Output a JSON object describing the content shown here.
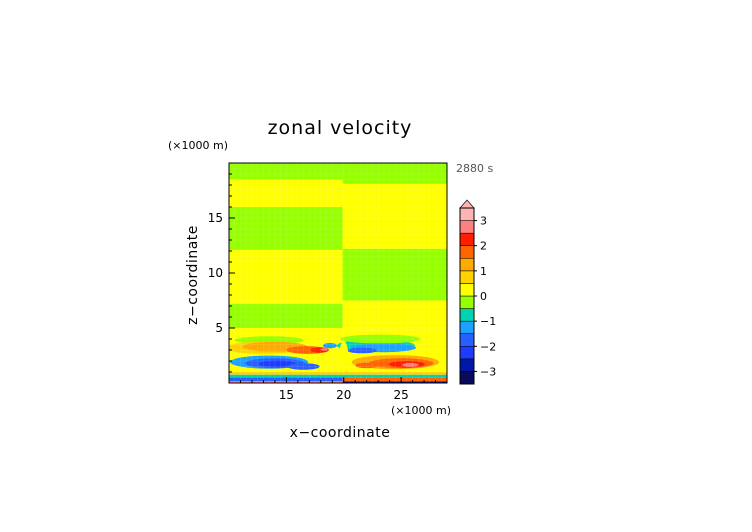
{
  "chart_data": {
    "type": "heatmap",
    "title": "zonal velocity",
    "xlabel": "x−coordinate",
    "ylabel": "z−coordinate",
    "x_unit": "(×1000 m)",
    "y_unit": "(×1000 m)",
    "time_label": "2880 s",
    "xlim": [
      10,
      29
    ],
    "ylim": [
      0,
      20
    ],
    "x_ticks": [
      15,
      20,
      25
    ],
    "y_ticks": [
      5,
      10,
      15
    ],
    "colorbar": {
      "min": -3.5,
      "max": 3.5,
      "extend": "max",
      "ticks": [
        "3",
        "2",
        "1",
        "0",
        "−1",
        "−2",
        "−3"
      ],
      "tick_values": [
        3,
        2,
        1,
        0,
        -1,
        -2,
        -3
      ],
      "levels": [
        {
          "from": -3.5,
          "to": -3.0,
          "color": "#0a0a5a"
        },
        {
          "from": -3.0,
          "to": -2.5,
          "color": "#0018a8"
        },
        {
          "from": -2.5,
          "to": -2.0,
          "color": "#1e3cff"
        },
        {
          "from": -2.0,
          "to": -1.5,
          "color": "#2860ff"
        },
        {
          "from": -1.5,
          "to": -1.0,
          "color": "#1ea0ff"
        },
        {
          "from": -1.0,
          "to": -0.5,
          "color": "#00d2b4"
        },
        {
          "from": -0.5,
          "to": 0.0,
          "color": "#96ff00"
        },
        {
          "from": 0.0,
          "to": 0.5,
          "color": "#ffff00"
        },
        {
          "from": 0.5,
          "to": 1.0,
          "color": "#ffd200"
        },
        {
          "from": 1.0,
          "to": 1.5,
          "color": "#ffaa00"
        },
        {
          "from": 1.5,
          "to": 2.0,
          "color": "#ff6400"
        },
        {
          "from": 2.0,
          "to": 2.5,
          "color": "#ff1e00"
        },
        {
          "from": 2.5,
          "to": 3.0,
          "color": "#ff8080"
        },
        {
          "from": 3.0,
          "to": 3.5,
          "color": "#ffb4b4"
        }
      ]
    },
    "regions": [
      {
        "x0": 10,
        "x1": 19.9,
        "z0": 18.5,
        "z1": 20,
        "value": -0.2
      },
      {
        "x0": 19.9,
        "x1": 29,
        "z0": 18.1,
        "z1": 20,
        "value": -0.2
      },
      {
        "x0": 10,
        "x1": 19.9,
        "z0": 16.0,
        "z1": 18.5,
        "value": 0.2
      },
      {
        "x0": 19.9,
        "x1": 29,
        "z0": 16.0,
        "z1": 18.1,
        "value": 0.2
      },
      {
        "x0": 10,
        "x1": 19.9,
        "z0": 12.1,
        "z1": 16.0,
        "value": -0.2
      },
      {
        "x0": 19.9,
        "x1": 29,
        "z0": 12.2,
        "z1": 16.0,
        "value": 0.2
      },
      {
        "x0": 10,
        "x1": 19.9,
        "z0": 7.2,
        "z1": 12.1,
        "value": 0.2
      },
      {
        "x0": 19.9,
        "x1": 29,
        "z0": 7.5,
        "z1": 12.2,
        "value": -0.2
      },
      {
        "x0": 10,
        "x1": 19.9,
        "z0": 5.0,
        "z1": 7.2,
        "value": -0.2
      },
      {
        "x0": 19.9,
        "x1": 29,
        "z0": 4.8,
        "z1": 7.5,
        "value": 0.2
      },
      {
        "x0": 10,
        "x1": 19.9,
        "z0": 1.0,
        "z1": 5.0,
        "value": 0.2
      },
      {
        "x0": 19.9,
        "x1": 29,
        "z0": 1.0,
        "z1": 4.8,
        "value": 0.2
      }
    ],
    "blobs": [
      {
        "cx": 13.5,
        "cz": 3.9,
        "rx": 3.0,
        "rz": 0.35,
        "value": -0.2
      },
      {
        "cx": 13.0,
        "cz": 3.2,
        "rx": 3.3,
        "rz": 0.55,
        "value": 0.8
      },
      {
        "cx": 14.0,
        "cz": 3.3,
        "rx": 2.8,
        "rz": 0.45,
        "value": 1.2
      },
      {
        "cx": 16.8,
        "cz": 3.0,
        "rx": 1.8,
        "rz": 0.35,
        "value": 1.8
      },
      {
        "cx": 17.9,
        "cz": 3.0,
        "rx": 0.8,
        "rz": 0.25,
        "value": 2.3
      },
      {
        "cx": 18.3,
        "cz": 3.05,
        "rx": 0.3,
        "rz": 0.12,
        "value": 2.8
      },
      {
        "cx": 18.8,
        "cz": 3.4,
        "rx": 0.6,
        "rz": 0.25,
        "value": -1.2
      },
      {
        "cx": 22.8,
        "cz": 3.4,
        "rx": 3.4,
        "rz": 0.55,
        "value": -0.8
      },
      {
        "cx": 23.5,
        "cz": 3.2,
        "rx": 2.8,
        "rz": 0.4,
        "value": -1.3
      },
      {
        "cx": 21.6,
        "cz": 2.95,
        "rx": 1.3,
        "rz": 0.25,
        "value": -1.8
      },
      {
        "cx": 23.2,
        "cz": 4.0,
        "rx": 3.5,
        "rz": 0.4,
        "value": -0.2
      },
      {
        "cx": 13.5,
        "cz": 1.9,
        "rx": 3.4,
        "rz": 0.6,
        "value": -1.2
      },
      {
        "cx": 14.0,
        "cz": 1.8,
        "rx": 2.6,
        "rz": 0.45,
        "value": -1.8
      },
      {
        "cx": 14.2,
        "cz": 1.75,
        "rx": 1.6,
        "rz": 0.3,
        "value": -2.3
      },
      {
        "cx": 16.5,
        "cz": 1.5,
        "rx": 1.4,
        "rz": 0.3,
        "value": -1.8
      },
      {
        "cx": 24.5,
        "cz": 1.9,
        "rx": 3.8,
        "rz": 0.65,
        "value": 1.2
      },
      {
        "cx": 25.0,
        "cz": 1.8,
        "rx": 2.8,
        "rz": 0.45,
        "value": 1.8
      },
      {
        "cx": 25.5,
        "cz": 1.7,
        "rx": 1.6,
        "rz": 0.3,
        "value": 2.3
      },
      {
        "cx": 25.8,
        "cz": 1.65,
        "rx": 0.7,
        "rz": 0.18,
        "value": 2.8
      },
      {
        "cx": 22.0,
        "cz": 1.6,
        "rx": 1.0,
        "rz": 0.25,
        "value": 1.8
      },
      {
        "cx": 20.0,
        "cz": 2.4,
        "rx": 0.4,
        "rz": 1.4,
        "value": 0.2
      }
    ],
    "surface_layer": [
      {
        "x0": 10,
        "x1": 29,
        "z0": 0.75,
        "z1": 1.0,
        "value": 0.8
      },
      {
        "x0": 10,
        "x1": 29,
        "z0": 0.5,
        "z1": 0.75,
        "value": -0.8
      },
      {
        "x0": 10,
        "x1": 19.9,
        "z0": 0.15,
        "z1": 0.5,
        "value": -1.8
      },
      {
        "x0": 19.9,
        "x1": 29,
        "z0": 0.15,
        "z1": 0.5,
        "value": 1.8
      },
      {
        "x0": 10,
        "x1": 19.9,
        "z0": 0.0,
        "z1": 0.15,
        "value": 2.8
      },
      {
        "x0": 19.9,
        "x1": 29,
        "z0": 0.0,
        "z1": 0.15,
        "value": -2.8
      }
    ]
  }
}
